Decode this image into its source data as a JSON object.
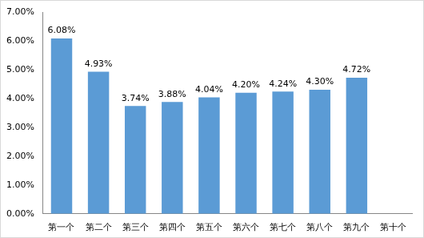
{
  "chart_data": {
    "type": "bar",
    "categories": [
      "第一个",
      "第二个",
      "第三个",
      "第四个",
      "第五个",
      "第六个",
      "第七个",
      "第八个",
      "第九个",
      "第十个"
    ],
    "values": [
      6.08,
      4.93,
      3.74,
      3.88,
      4.04,
      4.2,
      4.24,
      4.3,
      4.72,
      null
    ],
    "value_labels": [
      "6.08%",
      "4.93%",
      "3.74%",
      "3.88%",
      "4.04%",
      "4.20%",
      "4.24%",
      "4.30%",
      "4.72%",
      null
    ],
    "color": "#5b9bd5",
    "ylim": [
      0,
      7
    ],
    "yticks": [
      {
        "value": 0,
        "label": "0.00%"
      },
      {
        "value": 1,
        "label": "1.00%"
      },
      {
        "value": 2,
        "label": "2.00%"
      },
      {
        "value": 3,
        "label": "3.00%"
      },
      {
        "value": 4,
        "label": "4.00%"
      },
      {
        "value": 5,
        "label": "5.00%"
      },
      {
        "value": 6,
        "label": "6.00%"
      },
      {
        "value": 7,
        "label": "7.00%"
      }
    ],
    "grid": false,
    "data_labels": true
  }
}
